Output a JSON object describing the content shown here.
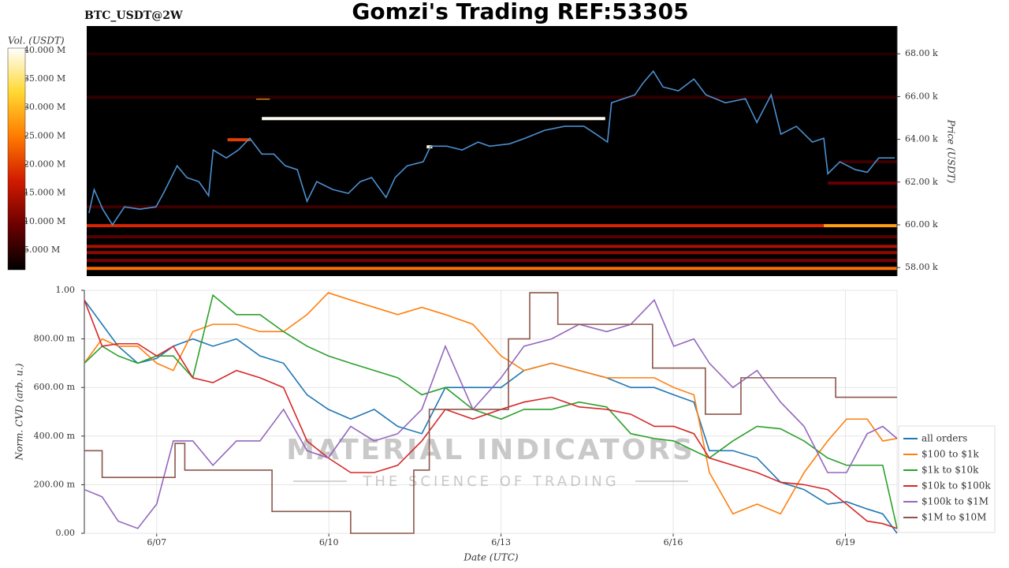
{
  "chart_data": [
    {
      "type": "heatmap",
      "title": "Gomzi's Trading REF:53305",
      "subtitle": "BTC_USDT@2W",
      "ylabel": "Price (USDT)",
      "colorbar_label": "Vol. (USDT)",
      "xlim": [
        5.74,
        19.9
      ],
      "ylim": [
        57600,
        69300
      ],
      "yticks": [
        {
          "value": 58000,
          "label": "58.00 k"
        },
        {
          "value": 60000,
          "label": "60.00 k"
        },
        {
          "value": 62000,
          "label": "62.00 k"
        },
        {
          "value": 64000,
          "label": "64.00 k"
        },
        {
          "value": 66000,
          "label": "66.00 k"
        },
        {
          "value": 68000,
          "label": "68.00 k"
        }
      ],
      "clim": [
        1540000,
        40400000
      ],
      "cticks": [
        {
          "value": 5000000,
          "label": "5.000 M"
        },
        {
          "value": 10000000,
          "label": "10.000 M"
        },
        {
          "value": 15000000,
          "label": "15.000 M"
        },
        {
          "value": 20000000,
          "label": "20.000 M"
        },
        {
          "value": 25000000,
          "label": "25.000 M"
        },
        {
          "value": 30000000,
          "label": "30.000 M"
        },
        {
          "value": 35000000,
          "label": "35.000 M"
        },
        {
          "value": 40000000,
          "label": "40.000 M"
        }
      ],
      "colormap": [
        "#000000",
        "#6a0000",
        "#d01a00",
        "#ff7a00",
        "#ffd830",
        "#ffffff"
      ],
      "levels": [
        {
          "price": 57960,
          "start": 5.74,
          "end": 19.9,
          "volume": 24000000
        },
        {
          "price": 58330,
          "start": 5.74,
          "end": 19.9,
          "volume": 10000000
        },
        {
          "price": 58700,
          "start": 5.74,
          "end": 19.9,
          "volume": 12000000
        },
        {
          "price": 58990,
          "start": 5.74,
          "end": 19.9,
          "volume": 14000000
        },
        {
          "price": 59440,
          "start": 5.74,
          "end": 19.9,
          "volume": 8000000
        },
        {
          "price": 59960,
          "start": 5.74,
          "end": 18.62,
          "volume": 18000000
        },
        {
          "price": 59960,
          "start": 18.62,
          "end": 19.9,
          "volume": 28000000
        },
        {
          "price": 60840,
          "start": 5.74,
          "end": 19.9,
          "volume": 6000000
        },
        {
          "price": 61950,
          "start": 18.69,
          "end": 19.9,
          "volume": 9000000
        },
        {
          "price": 62950,
          "start": 18.9,
          "end": 19.9,
          "volume": 6000000
        },
        {
          "price": 63650,
          "start": 11.68,
          "end": 11.78,
          "volume": 38000000
        },
        {
          "price": 63980,
          "start": 8.2,
          "end": 8.6,
          "volume": 20000000
        },
        {
          "price": 64970,
          "start": 8.8,
          "end": 14.8,
          "volume": 40000000
        },
        {
          "price": 65930,
          "start": 8.7,
          "end": 8.94,
          "volume": 30000000
        },
        {
          "price": 65970,
          "start": 5.74,
          "end": 19.9,
          "volume": 5000000
        },
        {
          "price": 68000,
          "start": 5.74,
          "end": 19.9,
          "volume": 4000000
        }
      ],
      "line": {
        "color": "#4a90d0",
        "x": [
          5.78,
          5.87,
          6.02,
          6.19,
          6.4,
          6.67,
          6.95,
          7.08,
          7.32,
          7.49,
          7.7,
          7.87,
          7.95,
          8.18,
          8.39,
          8.59,
          8.8,
          9.01,
          9.21,
          9.42,
          9.59,
          9.76,
          10.04,
          10.31,
          10.52,
          10.72,
          10.97,
          11.13,
          11.34,
          11.62,
          11.75,
          12.03,
          12.3,
          12.58,
          12.78,
          13.13,
          13.4,
          13.74,
          14.09,
          14.43,
          14.64,
          14.84,
          14.91,
          15.12,
          15.32,
          15.46,
          15.64,
          15.81,
          16.08,
          16.35,
          16.56,
          16.9,
          17.25,
          17.45,
          17.7,
          17.87,
          18.14,
          18.42,
          18.62,
          18.69,
          18.9,
          19.17,
          19.38,
          19.58,
          19.86
        ],
        "values": [
          60550,
          61650,
          60730,
          60000,
          60840,
          60730,
          60840,
          61470,
          62760,
          62210,
          62020,
          61360,
          63500,
          63130,
          63500,
          64050,
          63310,
          63310,
          62760,
          62580,
          61100,
          62020,
          61650,
          61470,
          62020,
          62210,
          61280,
          62210,
          62760,
          62950,
          63680,
          63680,
          63500,
          63870,
          63680,
          63790,
          64050,
          64420,
          64610,
          64610,
          64240,
          63870,
          65710,
          65900,
          66080,
          66630,
          67190,
          66450,
          66270,
          66820,
          66080,
          65710,
          65900,
          64790,
          66080,
          64240,
          64610,
          63870,
          64050,
          62390,
          62950,
          62580,
          62460,
          63130,
          63130
        ]
      }
    },
    {
      "type": "line",
      "xlabel": "Date (UTC)",
      "ylabel": "Norm. CVD (arb. u.)",
      "watermark": "MATERIAL INDICATORS",
      "watermark_sub": "THE SCIENCE OF TRADING",
      "xlim": [
        5.74,
        19.9
      ],
      "ylim": [
        0,
        1
      ],
      "xticks": [
        {
          "value": 7,
          "label": "6/07"
        },
        {
          "value": 10,
          "label": "6/10"
        },
        {
          "value": 13,
          "label": "6/13"
        },
        {
          "value": 16,
          "label": "6/16"
        },
        {
          "value": 19,
          "label": "6/19"
        }
      ],
      "yticks": [
        {
          "value": 0,
          "label": "0.00"
        },
        {
          "value": 0.2,
          "label": "200.00 m"
        },
        {
          "value": 0.4,
          "label": "400.00 m"
        },
        {
          "value": 0.6,
          "label": "600.00 m"
        },
        {
          "value": 0.8,
          "label": "800.00 m"
        },
        {
          "value": 1,
          "label": "1.00"
        }
      ],
      "grid": true,
      "legend": "right",
      "x": [
        5.74,
        6.05,
        6.33,
        6.67,
        7.0,
        7.29,
        7.63,
        7.98,
        8.39,
        8.8,
        9.21,
        9.62,
        9.99,
        10.38,
        10.79,
        11.2,
        11.62,
        12.03,
        12.51,
        13.0,
        13.4,
        13.88,
        14.36,
        14.84,
        15.26,
        15.67,
        16.01,
        16.36,
        16.63,
        17.04,
        17.46,
        17.87,
        18.28,
        18.69,
        19.02,
        19.38,
        19.65,
        19.9
      ],
      "series": [
        {
          "name": "all orders",
          "color": "#1f77b4",
          "values": [
            0.96,
            0.86,
            0.77,
            0.7,
            0.72,
            0.77,
            0.8,
            0.77,
            0.8,
            0.73,
            0.7,
            0.57,
            0.51,
            0.47,
            0.51,
            0.44,
            0.41,
            0.6,
            0.6,
            0.6,
            0.67,
            0.7,
            0.67,
            0.64,
            0.6,
            0.6,
            0.57,
            0.54,
            0.34,
            0.34,
            0.31,
            0.21,
            0.18,
            0.12,
            0.13,
            0.1,
            0.08,
            0.0
          ]
        },
        {
          "name": "$100 to $1k",
          "color": "#ff7f0e",
          "values": [
            0.7,
            0.8,
            0.77,
            0.77,
            0.7,
            0.67,
            0.83,
            0.86,
            0.86,
            0.83,
            0.83,
            0.9,
            0.99,
            0.96,
            0.93,
            0.9,
            0.93,
            0.9,
            0.86,
            0.73,
            0.67,
            0.7,
            0.67,
            0.64,
            0.64,
            0.64,
            0.6,
            0.57,
            0.25,
            0.08,
            0.12,
            0.08,
            0.25,
            0.38,
            0.47,
            0.47,
            0.38,
            0.39
          ]
        },
        {
          "name": "$1k to $10k",
          "color": "#2ca02c",
          "values": [
            0.7,
            0.77,
            0.73,
            0.7,
            0.73,
            0.73,
            0.64,
            0.98,
            0.9,
            0.9,
            0.83,
            0.77,
            0.73,
            0.7,
            0.67,
            0.64,
            0.57,
            0.6,
            0.51,
            0.47,
            0.51,
            0.51,
            0.54,
            0.52,
            0.41,
            0.39,
            0.38,
            0.34,
            0.31,
            0.38,
            0.44,
            0.43,
            0.38,
            0.31,
            0.28,
            0.28,
            0.28,
            0.02
          ]
        },
        {
          "name": "$10k to $100k",
          "color": "#d62728",
          "values": [
            0.96,
            0.77,
            0.78,
            0.78,
            0.73,
            0.77,
            0.64,
            0.62,
            0.67,
            0.64,
            0.6,
            0.38,
            0.31,
            0.25,
            0.25,
            0.28,
            0.38,
            0.51,
            0.47,
            0.51,
            0.54,
            0.56,
            0.52,
            0.51,
            0.49,
            0.44,
            0.44,
            0.41,
            0.31,
            0.28,
            0.25,
            0.21,
            0.2,
            0.18,
            0.12,
            0.05,
            0.04,
            0.02
          ]
        },
        {
          "name": "$100k to $1M",
          "color": "#9467bd",
          "values": [
            0.18,
            0.15,
            0.05,
            0.02,
            0.12,
            0.38,
            0.38,
            0.28,
            0.38,
            0.38,
            0.51,
            0.34,
            0.31,
            0.44,
            0.38,
            0.41,
            0.51,
            0.77,
            0.51,
            0.64,
            0.77,
            0.8,
            0.86,
            0.83,
            0.86,
            0.96,
            0.77,
            0.8,
            0.7,
            0.6,
            0.67,
            0.54,
            0.44,
            0.25,
            0.25,
            0.41,
            0.44,
            0.39
          ]
        },
        {
          "name": "$1M to $10M",
          "color": "#8c564b",
          "step": "post",
          "x": [
            5.74,
            6.05,
            7.32,
            7.49,
            9.01,
            10.38,
            11.48,
            11.75,
            13.13,
            13.5,
            13.99,
            15.64,
            16.56,
            17.18,
            18.83,
            19.9
          ],
          "values": [
            0.34,
            0.23,
            0.37,
            0.26,
            0.09,
            0,
            0.26,
            0.51,
            0.8,
            0.99,
            0.86,
            0.68,
            0.49,
            0.64,
            0.56,
            0.56
          ]
        }
      ]
    }
  ]
}
